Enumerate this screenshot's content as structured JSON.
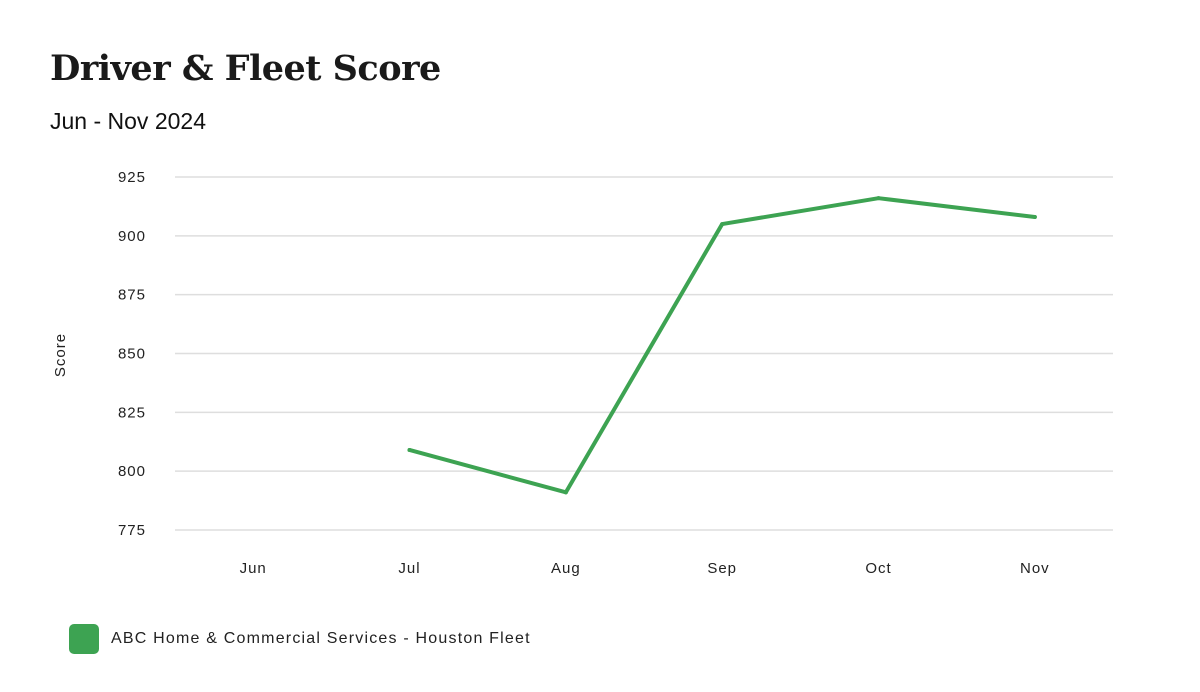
{
  "header": {
    "title": "Driver & Fleet Score",
    "subtitle": "Jun - Nov 2024"
  },
  "chart_data": {
    "type": "line",
    "categories": [
      "Jun",
      "Jul",
      "Aug",
      "Sep",
      "Oct",
      "Nov"
    ],
    "series": [
      {
        "name": "ABC Home & Commercial Services - Houston Fleet",
        "color": "#3da352",
        "values": [
          null,
          809,
          791,
          905,
          916,
          908
        ]
      }
    ],
    "ylabel": "Score",
    "xlabel": "",
    "ylim": [
      775,
      925
    ],
    "yticks": [
      925,
      900,
      875,
      850,
      825,
      800,
      775
    ],
    "grid": true,
    "legend_position": "bottom-left"
  }
}
